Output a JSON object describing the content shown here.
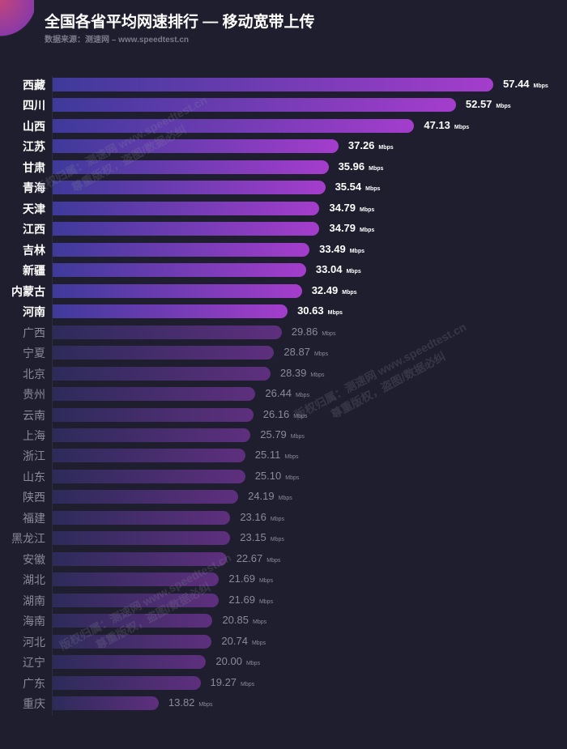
{
  "title": "全国各省平均网速排行 — 移动宽带上传",
  "subtitle": "数据来源：测速网 – www.speedtest.cn",
  "watermark": {
    "line1": "版权归属：测速网 www.speedtest.cn",
    "line2": "尊重版权，盗图/数据必纠"
  },
  "chart_data": {
    "type": "bar",
    "orientation": "horizontal",
    "title": "全国各省平均网速排行 — 移动宽带上传",
    "unit": "Mbps",
    "highlight_top_n": 12,
    "categories": [
      "西藏",
      "四川",
      "山西",
      "江苏",
      "甘肃",
      "青海",
      "天津",
      "江西",
      "吉林",
      "新疆",
      "内蒙古",
      "河南",
      "广西",
      "宁夏",
      "北京",
      "贵州",
      "云南",
      "上海",
      "浙江",
      "山东",
      "陕西",
      "福建",
      "黑龙江",
      "安徽",
      "湖北",
      "湖南",
      "海南",
      "河北",
      "辽宁",
      "广东",
      "重庆"
    ],
    "values": [
      57.44,
      52.57,
      47.13,
      37.26,
      35.96,
      35.54,
      34.79,
      34.79,
      33.49,
      33.04,
      32.49,
      30.63,
      29.86,
      28.87,
      28.39,
      26.44,
      26.16,
      25.79,
      25.11,
      25.1,
      24.19,
      23.16,
      23.15,
      22.67,
      21.69,
      21.69,
      20.85,
      20.74,
      20.0,
      19.27,
      13.82
    ],
    "value_labels": [
      "57.44",
      "52.57",
      "47.13",
      "37.26",
      "35.96",
      "35.54",
      "34.79",
      "34.79",
      "33.49",
      "33.04",
      "32.49",
      "30.63",
      "29.86",
      "28.87",
      "28.39",
      "26.44",
      "26.16",
      "25.79",
      "25.11",
      "25.10",
      "24.19",
      "23.16",
      "23.15",
      "22.67",
      "21.69",
      "21.69",
      "20.85",
      "20.74",
      "20.00",
      "19.27",
      "13.82"
    ],
    "xlim": [
      0,
      60
    ]
  }
}
